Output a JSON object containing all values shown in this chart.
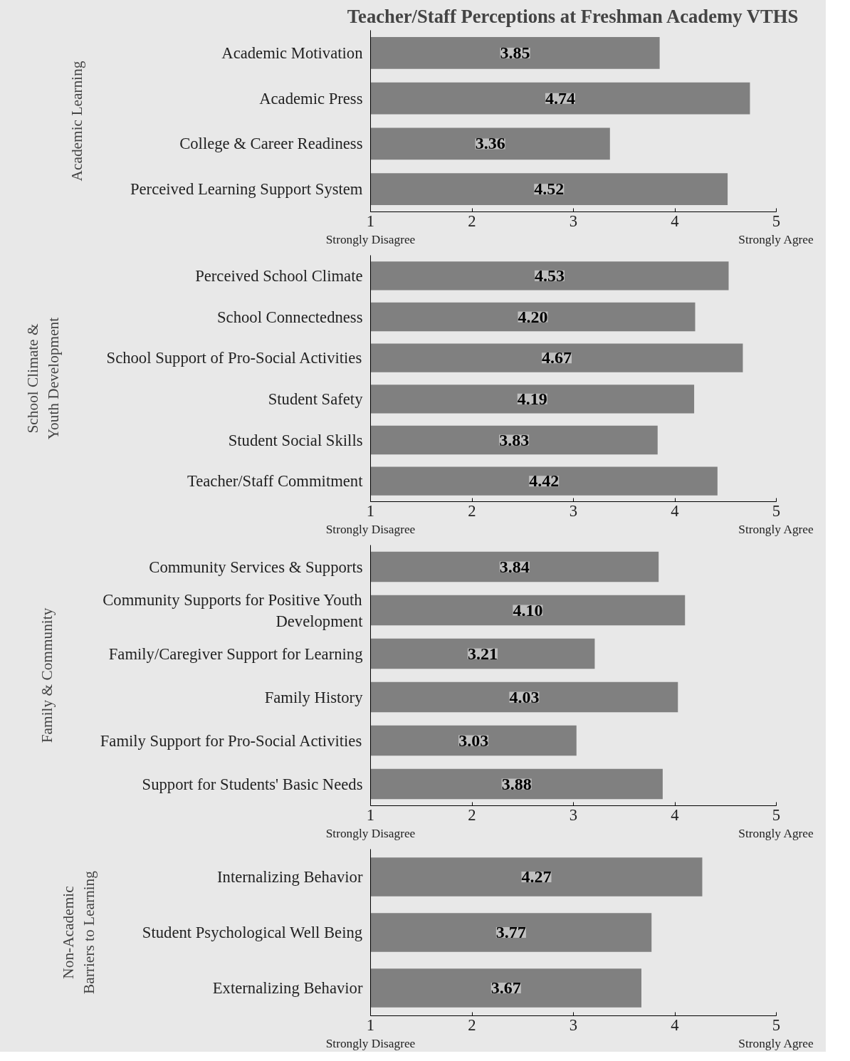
{
  "chart_data": [
    {
      "type": "bar",
      "orientation": "horizontal",
      "title": "Teacher/Staff Perceptions at Freshman Academy VTHS",
      "ylabel": "Academic Learning",
      "categories": [
        "Academic Motivation",
        "Academic Press",
        "College & Career Readiness",
        "Perceived Learning Support System"
      ],
      "values": [
        3.85,
        4.74,
        3.36,
        4.52
      ],
      "color": "#808080",
      "xlim": [
        1,
        5
      ],
      "xticks": [
        1,
        2,
        3,
        4,
        5
      ],
      "data_labels": true,
      "grid": false,
      "annotations": [
        "Strongly Disagree",
        "Strongly Agree"
      ]
    },
    {
      "type": "bar",
      "orientation": "horizontal",
      "ylabel": "School Climate & Youth Development",
      "categories": [
        "Perceived School Climate",
        "School Connectedness",
        "School Support of Pro-Social Activities",
        "Student Safety",
        "Student Social Skills",
        "Teacher/Staff Commitment"
      ],
      "values": [
        4.53,
        4.2,
        4.67,
        4.19,
        3.83,
        4.42
      ],
      "value_labels": [
        "4.53",
        "4.20",
        "4.67",
        "4.19",
        "3.83",
        "4.42"
      ],
      "color": "#808080",
      "xlim": [
        1,
        5
      ],
      "xticks": [
        1,
        2,
        3,
        4,
        5
      ],
      "grid": false,
      "annotations": [
        "Strongly Disagree",
        "Strongly Agree"
      ]
    },
    {
      "type": "bar",
      "orientation": "horizontal",
      "ylabel": "Family & Community",
      "categories": [
        "Community Services & Supports",
        "Community Supports for Positive Youth Development",
        "Family/Caregiver Support for Learning",
        "Family History",
        "Family Support for Pro-Social Activities",
        "Support for Students' Basic Needs"
      ],
      "values": [
        3.84,
        4.1,
        3.21,
        4.03,
        3.03,
        3.88
      ],
      "value_labels": [
        "3.84",
        "4.10",
        "3.21",
        "4.03",
        "3.03",
        "3.88"
      ],
      "color": "#808080",
      "xlim": [
        1,
        5
      ],
      "xticks": [
        1,
        2,
        3,
        4,
        5
      ],
      "grid": false,
      "annotations": [
        "Strongly Disagree",
        "Strongly Agree"
      ]
    },
    {
      "type": "bar",
      "orientation": "horizontal",
      "ylabel": "Non-Academic Barriers to Learning",
      "categories": [
        "Internalizing Behavior",
        "Student Psychological Well Being",
        "Externalizing Behavior"
      ],
      "values": [
        4.27,
        3.77,
        3.67
      ],
      "color": "#808080",
      "xlim": [
        1,
        5
      ],
      "xticks": [
        1,
        2,
        3,
        4,
        5
      ],
      "data_labels": true,
      "grid": false,
      "annotations": [
        "Strongly Disagree",
        "Strongly Agree"
      ]
    }
  ]
}
